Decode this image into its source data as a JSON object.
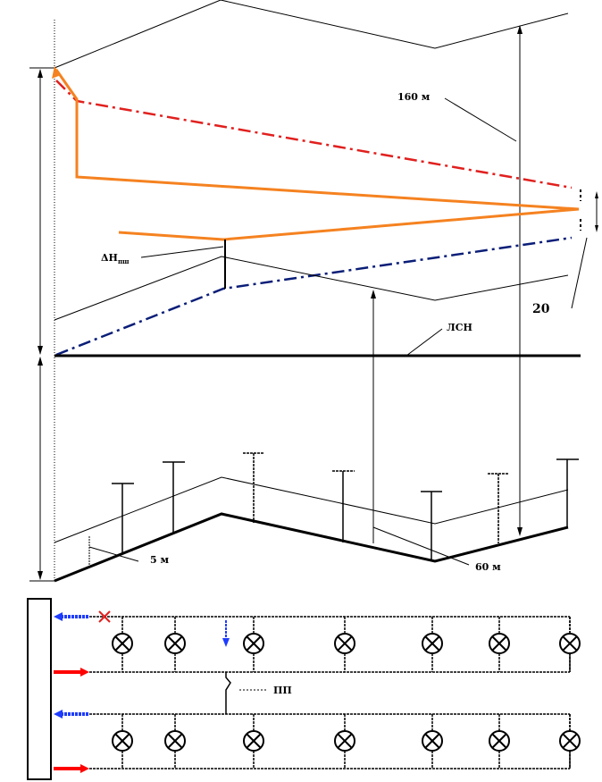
{
  "labels": {
    "height_160": "160 м",
    "dh": "ΔH",
    "dh_sub": "пш",
    "lsn": "ЛСН",
    "val_20": "20",
    "height_5": "5 м",
    "height_60": "60 м",
    "pp": "ПП"
  },
  "colors": {
    "orange_line": "#f58220",
    "red_line": "#e0201e",
    "blue_line": "#0a1e78",
    "arrow_red": "#ff0000",
    "arrow_blue": "#1e3cff",
    "black": "#000000"
  },
  "consumer_symbol": "circle-with-cross-icon"
}
